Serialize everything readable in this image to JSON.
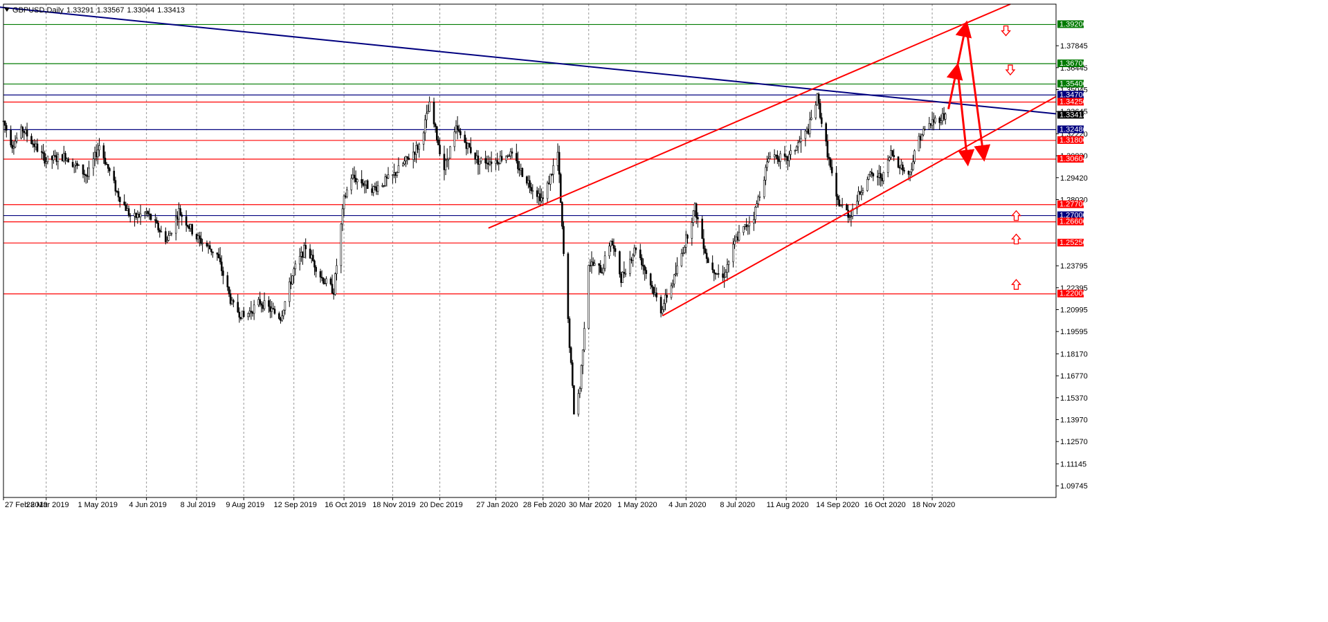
{
  "header": {
    "symbol_timeframe": "GBPUSD,Daily",
    "ohlc": [
      "1.33291",
      "1.33567",
      "1.33044",
      "1.33413"
    ]
  },
  "colors": {
    "background": "#ffffff",
    "candle": "#000000",
    "grid": "#6b6b6b",
    "support_resistance_red": "#ff0000",
    "green_level": "#007a00",
    "navy_level": "#00007f",
    "trend_navy": "#1c1c8c",
    "arrow_red": "#ff0000"
  },
  "chart_data": {
    "type": "candlestick",
    "symbol": "GBPUSD",
    "timeframe": "Daily",
    "ylim": [
      1.09,
      1.405
    ],
    "xlim": [
      "2019-02-27",
      "2021-02-10"
    ],
    "y_ticks": [
      "1.37845",
      "1.36445",
      "1.35045",
      "1.33645",
      "1.32220",
      "1.30820",
      "1.29420",
      "1.28020",
      "1.23795",
      "1.22395",
      "1.20995",
      "1.19595",
      "1.18170",
      "1.16770",
      "1.15370",
      "1.13970",
      "1.12570",
      "1.11145",
      "1.09745"
    ],
    "x_ticks": [
      {
        "label": "27 Feb 2019",
        "date": "2019-02-27"
      },
      {
        "label": "28 Mar 2019",
        "date": "2019-03-28"
      },
      {
        "label": "1 May 2019",
        "date": "2019-05-01"
      },
      {
        "label": "4 Jun 2019",
        "date": "2019-06-04"
      },
      {
        "label": "8 Jul 2019",
        "date": "2019-07-08"
      },
      {
        "label": "9 Aug 2019",
        "date": "2019-08-09"
      },
      {
        "label": "12 Sep 2019",
        "date": "2019-09-12"
      },
      {
        "label": "16 Oct 2019",
        "date": "2019-10-16"
      },
      {
        "label": "18 Nov 2019",
        "date": "2019-11-18"
      },
      {
        "label": "20 Dec 2019",
        "date": "2019-12-20"
      },
      {
        "label": "27 Jan 2020",
        "date": "2020-01-27"
      },
      {
        "label": "28 Feb 2020",
        "date": "2020-02-28"
      },
      {
        "label": "30 Mar 2020",
        "date": "2020-03-30"
      },
      {
        "label": "1 May 2020",
        "date": "2020-05-01"
      },
      {
        "label": "4 Jun 2020",
        "date": "2020-06-04"
      },
      {
        "label": "8 Jul 2020",
        "date": "2020-07-08"
      },
      {
        "label": "11 Aug 2020",
        "date": "2020-08-11"
      },
      {
        "label": "14 Sep 2020",
        "date": "2020-09-14"
      },
      {
        "label": "16 Oct 2020",
        "date": "2020-10-16"
      },
      {
        "label": "18 Nov 2020",
        "date": "2020-11-18"
      }
    ],
    "price_path": [
      {
        "date": "2019-02-27",
        "price": 1.33
      },
      {
        "date": "2019-03-05",
        "price": 1.315
      },
      {
        "date": "2019-03-12",
        "price": 1.325
      },
      {
        "date": "2019-03-20",
        "price": 1.315
      },
      {
        "date": "2019-03-28",
        "price": 1.305
      },
      {
        "date": "2019-04-10",
        "price": 1.308
      },
      {
        "date": "2019-04-25",
        "price": 1.295
      },
      {
        "date": "2019-05-03",
        "price": 1.315
      },
      {
        "date": "2019-05-15",
        "price": 1.285
      },
      {
        "date": "2019-05-25",
        "price": 1.268
      },
      {
        "date": "2019-06-04",
        "price": 1.272
      },
      {
        "date": "2019-06-18",
        "price": 1.254
      },
      {
        "date": "2019-06-26",
        "price": 1.273
      },
      {
        "date": "2019-07-08",
        "price": 1.256
      },
      {
        "date": "2019-07-22",
        "price": 1.245
      },
      {
        "date": "2019-08-01",
        "price": 1.213
      },
      {
        "date": "2019-08-09",
        "price": 1.205
      },
      {
        "date": "2019-08-20",
        "price": 1.215
      },
      {
        "date": "2019-09-03",
        "price": 1.205
      },
      {
        "date": "2019-09-12",
        "price": 1.235
      },
      {
        "date": "2019-09-20",
        "price": 1.25
      },
      {
        "date": "2019-10-01",
        "price": 1.23
      },
      {
        "date": "2019-10-09",
        "price": 1.222
      },
      {
        "date": "2019-10-16",
        "price": 1.28
      },
      {
        "date": "2019-10-21",
        "price": 1.295
      },
      {
        "date": "2019-11-05",
        "price": 1.287
      },
      {
        "date": "2019-11-18",
        "price": 1.295
      },
      {
        "date": "2019-12-06",
        "price": 1.315
      },
      {
        "date": "2019-12-13",
        "price": 1.34
      },
      {
        "date": "2019-12-23",
        "price": 1.3
      },
      {
        "date": "2019-12-31",
        "price": 1.325
      },
      {
        "date": "2020-01-15",
        "price": 1.305
      },
      {
        "date": "2020-01-27",
        "price": 1.305
      },
      {
        "date": "2020-02-05",
        "price": 1.31
      },
      {
        "date": "2020-02-19",
        "price": 1.29
      },
      {
        "date": "2020-02-28",
        "price": 1.28
      },
      {
        "date": "2020-03-09",
        "price": 1.31
      },
      {
        "date": "2020-03-13",
        "price": 1.245
      },
      {
        "date": "2020-03-20",
        "price": 1.145
      },
      {
        "date": "2020-03-24",
        "price": 1.16
      },
      {
        "date": "2020-03-30",
        "price": 1.24
      },
      {
        "date": "2020-04-08",
        "price": 1.235
      },
      {
        "date": "2020-04-14",
        "price": 1.255
      },
      {
        "date": "2020-04-21",
        "price": 1.23
      },
      {
        "date": "2020-05-01",
        "price": 1.25
      },
      {
        "date": "2020-05-18",
        "price": 1.21
      },
      {
        "date": "2020-05-27",
        "price": 1.23
      },
      {
        "date": "2020-06-04",
        "price": 1.255
      },
      {
        "date": "2020-06-10",
        "price": 1.275
      },
      {
        "date": "2020-06-19",
        "price": 1.24
      },
      {
        "date": "2020-06-29",
        "price": 1.23
      },
      {
        "date": "2020-07-08",
        "price": 1.255
      },
      {
        "date": "2020-07-20",
        "price": 1.27
      },
      {
        "date": "2020-07-31",
        "price": 1.31
      },
      {
        "date": "2020-08-11",
        "price": 1.305
      },
      {
        "date": "2020-08-26",
        "price": 1.325
      },
      {
        "date": "2020-09-01",
        "price": 1.345
      },
      {
        "date": "2020-09-07",
        "price": 1.315
      },
      {
        "date": "2020-09-14",
        "price": 1.28
      },
      {
        "date": "2020-09-23",
        "price": 1.27
      },
      {
        "date": "2020-10-05",
        "price": 1.295
      },
      {
        "date": "2020-10-16",
        "price": 1.295
      },
      {
        "date": "2020-10-21",
        "price": 1.31
      },
      {
        "date": "2020-11-02",
        "price": 1.295
      },
      {
        "date": "2020-11-09",
        "price": 1.32
      },
      {
        "date": "2020-11-18",
        "price": 1.33
      },
      {
        "date": "2020-11-27",
        "price": 1.3341
      }
    ],
    "horizontal_levels": [
      {
        "price": 1.392,
        "label": "1.39200",
        "color": "green"
      },
      {
        "price": 1.367,
        "label": "1.36700",
        "color": "green"
      },
      {
        "price": 1.354,
        "label": "1.35400",
        "color": "green"
      },
      {
        "price": 1.347,
        "label": "1.34700",
        "color": "navy"
      },
      {
        "price": 1.3425,
        "label": "1.34250",
        "color": "red"
      },
      {
        "price": 1.32486,
        "label": "1.32486",
        "color": "navy"
      },
      {
        "price": 1.318,
        "label": "1.31800",
        "color": "red"
      },
      {
        "price": 1.30604,
        "label": "1.30604",
        "color": "red"
      },
      {
        "price": 1.277,
        "label": "1.27700",
        "color": "red"
      },
      {
        "price": 1.27,
        "label": "1.27000",
        "color": "navy"
      },
      {
        "price": 1.266,
        "label": "1.26600",
        "color": "red"
      },
      {
        "price": 1.2525,
        "label": "1.25250",
        "color": "red"
      },
      {
        "price": 1.22,
        "label": "1.22000",
        "color": "red"
      }
    ],
    "current_price": {
      "price": 1.33413,
      "label": "1.33413"
    },
    "trendlines": [
      {
        "color": "navy",
        "from": {
          "date": "2019-02-15",
          "price": 1.404
        },
        "to": {
          "date": "2021-02-10",
          "price": 1.335
        }
      },
      {
        "color": "red",
        "from": {
          "date": "2020-01-22",
          "price": 1.262
        },
        "to": {
          "date": "2021-01-10",
          "price": 1.405
        }
      },
      {
        "color": "red",
        "from": {
          "date": "2020-05-19",
          "price": 1.206
        },
        "to": {
          "date": "2021-02-10",
          "price": 1.346
        }
      }
    ],
    "projection_arrows": [
      {
        "from": {
          "date": "2020-11-29",
          "price": 1.338
        },
        "to": {
          "date": "2020-12-05",
          "price": 1.365
        }
      },
      {
        "from": {
          "date": "2020-12-05",
          "price": 1.365
        },
        "to": {
          "date": "2020-12-12",
          "price": 1.304
        }
      },
      {
        "from": {
          "date": "2020-12-05",
          "price": 1.365
        },
        "to": {
          "date": "2020-12-11",
          "price": 1.392
        }
      },
      {
        "from": {
          "date": "2020-12-11",
          "price": 1.392
        },
        "to": {
          "date": "2020-12-23",
          "price": 1.307
        }
      }
    ],
    "signal_markers": [
      {
        "direction": "down",
        "date": "2021-01-07",
        "price": 1.388
      },
      {
        "direction": "down",
        "date": "2021-01-10",
        "price": 1.363
      },
      {
        "direction": "up",
        "date": "2021-01-14",
        "price": 1.27
      },
      {
        "direction": "up",
        "date": "2021-01-14",
        "price": 1.255
      },
      {
        "direction": "up",
        "date": "2021-01-14",
        "price": 1.226
      }
    ]
  }
}
